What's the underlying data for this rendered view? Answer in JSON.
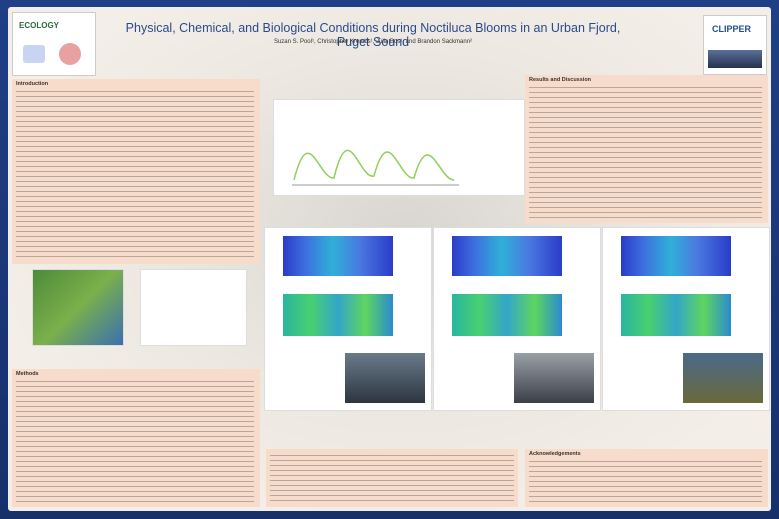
{
  "header": {
    "title": "Physical, Chemical, and Biological Conditions during Noctiluca Blooms in an Urban Fjord, Puget Sound",
    "authors": "Suzan S. Pool¹, Christopher Krembs¹, Julia Bos¹, and Brandon Sackmann²",
    "logo_left": "ECOLOGY",
    "logo_right": "CLIPPER"
  },
  "sections": {
    "introduction": "Introduction",
    "results": "Results and Discussion",
    "methods": "Methods",
    "acknowledgements": "Acknowledgements"
  }
}
